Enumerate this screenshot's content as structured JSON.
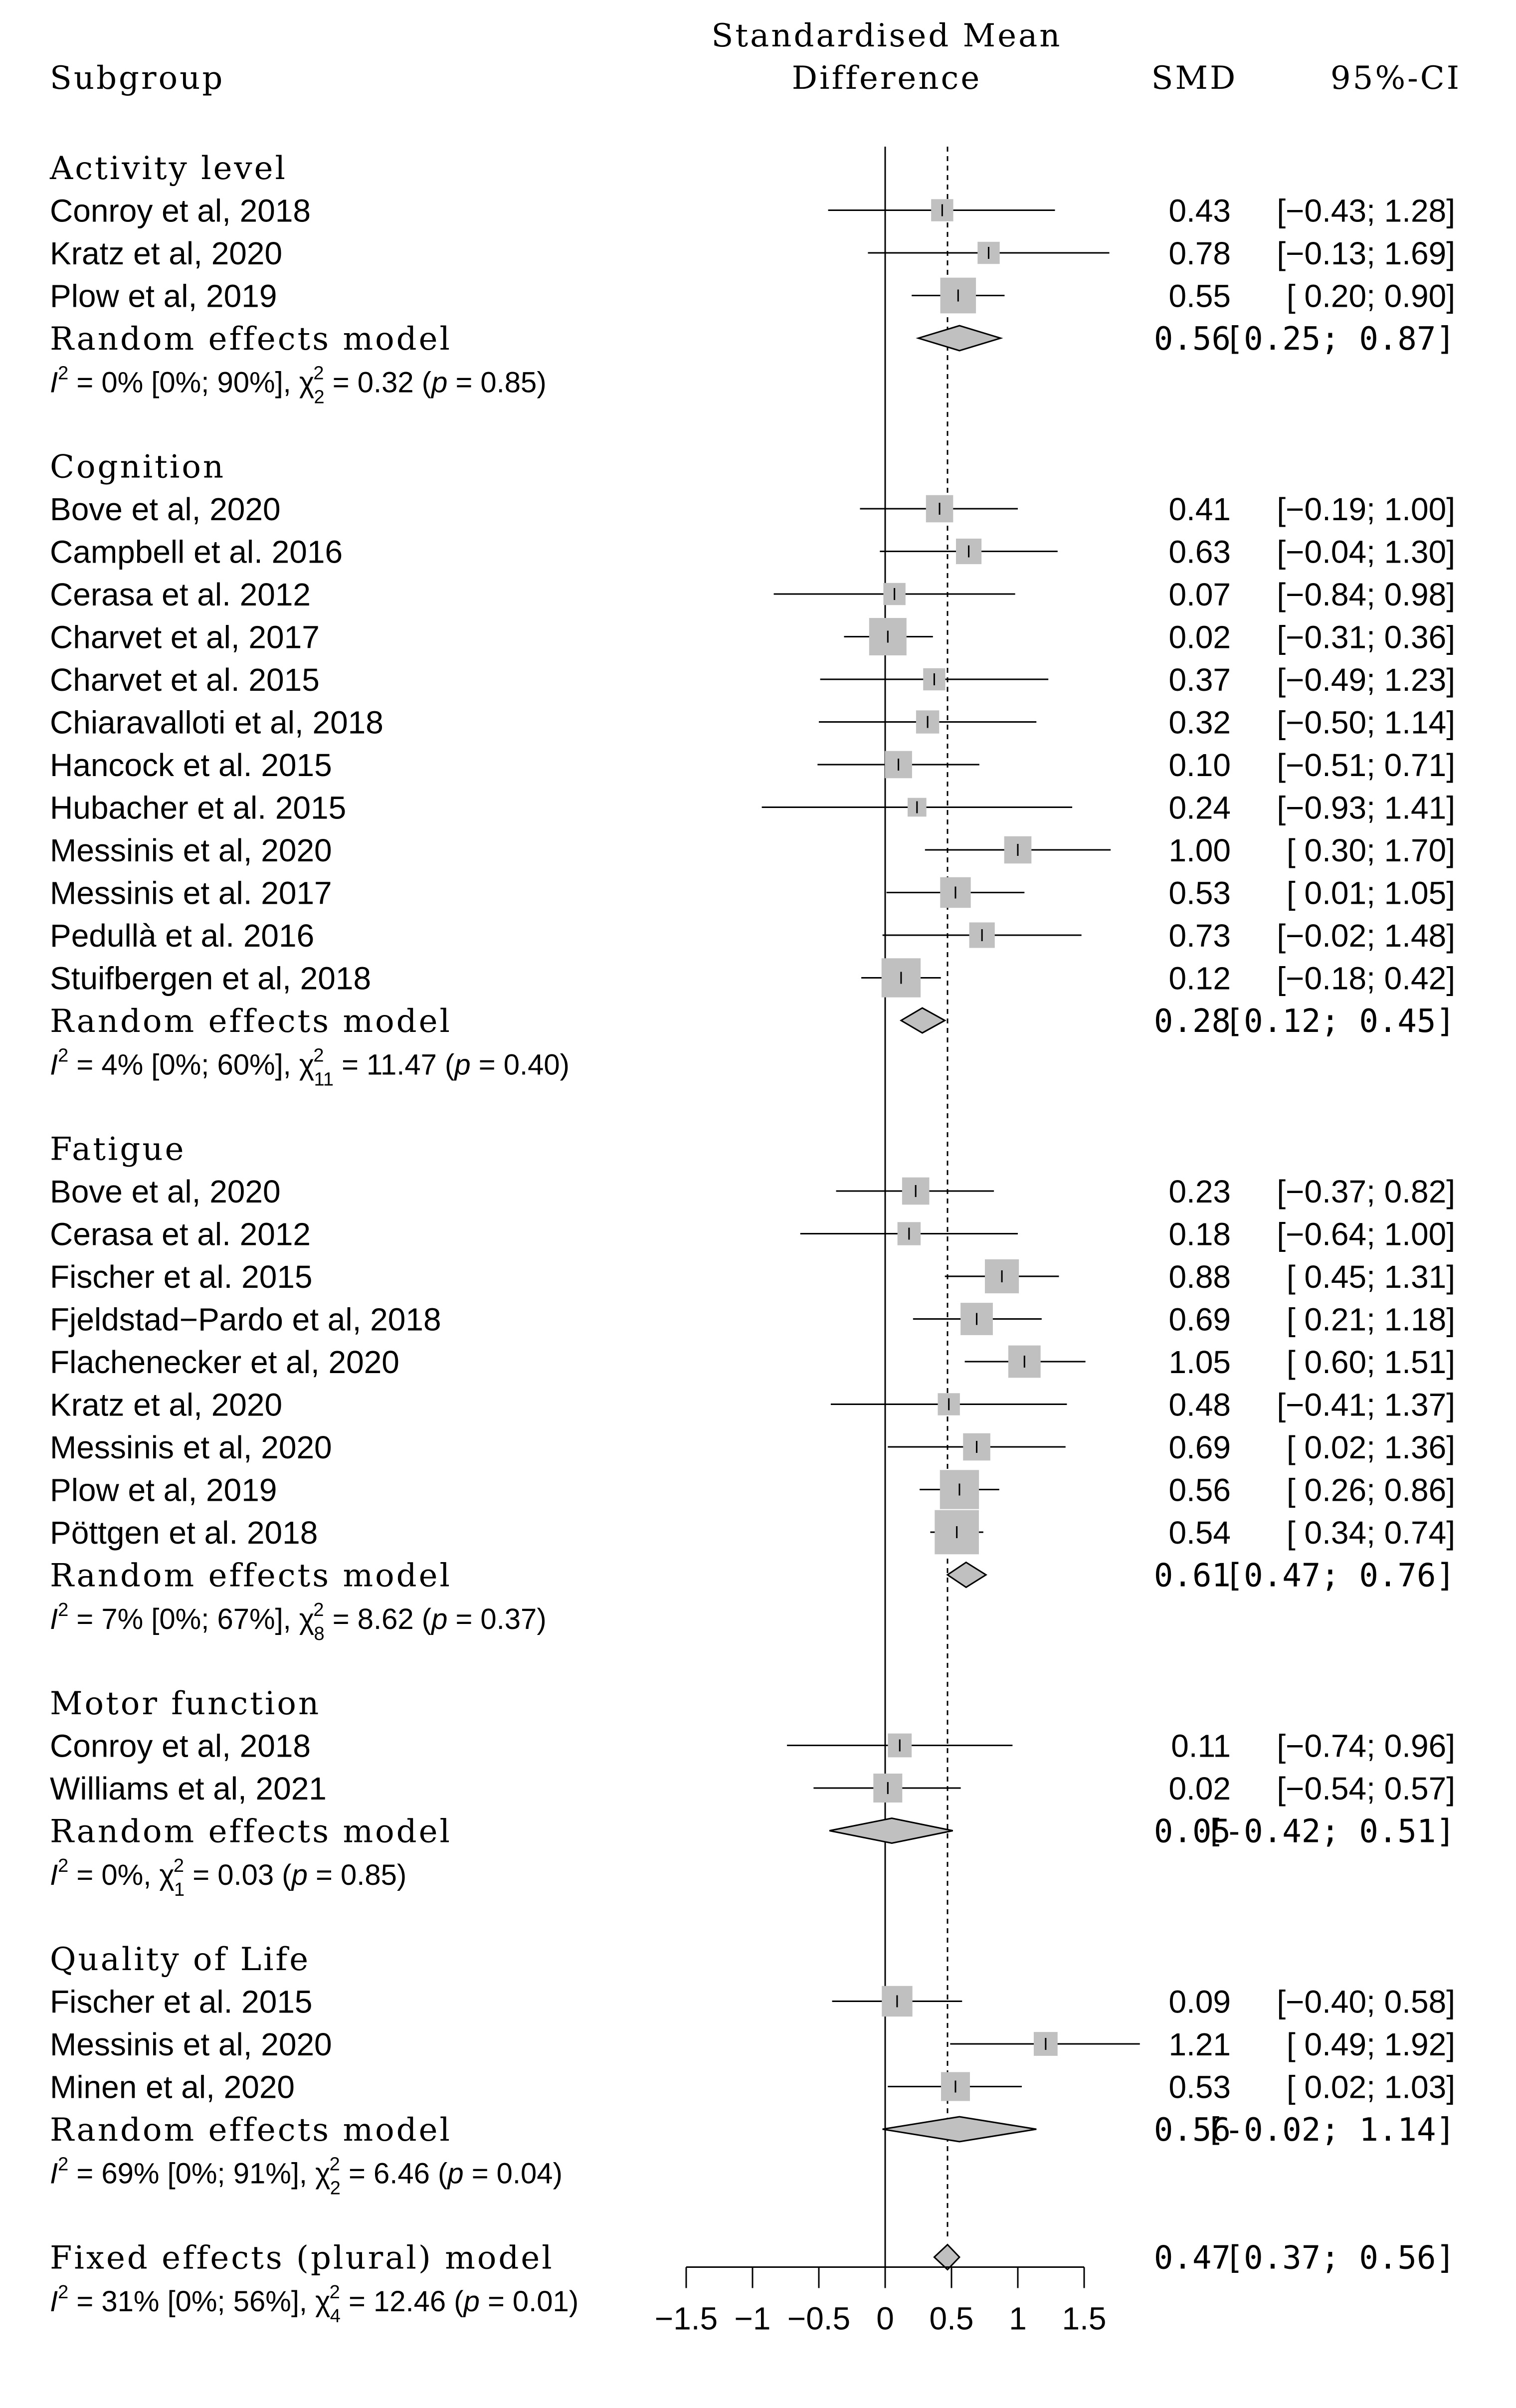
{
  "chart_data": {
    "type": "forest",
    "header": {
      "subgroup": "Subgroup",
      "effect_line1": "Standardised Mean",
      "effect_line2": "Difference",
      "smd": "SMD",
      "ci": "95%-CI"
    },
    "xlim": [
      -1.5,
      1.5
    ],
    "ticks": [
      {
        "v": -1.5,
        "label": "−1.5"
      },
      {
        "v": -1,
        "label": "−1"
      },
      {
        "v": -0.5,
        "label": "−0.5"
      },
      {
        "v": 0,
        "label": "0"
      },
      {
        "v": 0.5,
        "label": "0.5"
      },
      {
        "v": 1,
        "label": "1"
      },
      {
        "v": 1.5,
        "label": "1.5"
      }
    ],
    "reference_line": 0,
    "overall_line": 0.47,
    "groups": [
      {
        "name": "Activity level",
        "studies": [
          {
            "label": "Conroy et al, 2018",
            "smd": 0.43,
            "lo": -0.43,
            "hi": 1.28,
            "smd_text": "0.43",
            "ci_text": "[−0.43; 1.28]",
            "w": 0.3
          },
          {
            "label": "Kratz et al, 2020",
            "smd": 0.78,
            "lo": -0.13,
            "hi": 1.69,
            "smd_text": "0.78",
            "ci_text": "[−0.13; 1.69]",
            "w": 0.3
          },
          {
            "label": "Plow et al, 2019",
            "smd": 0.55,
            "lo": 0.2,
            "hi": 0.9,
            "smd_text": "0.55",
            "ci_text": "[ 0.20; 0.90]",
            "w": 0.7
          }
        ],
        "pooled": {
          "label": "Random effects model",
          "smd": 0.56,
          "lo": 0.25,
          "hi": 0.87,
          "smd_text": "0.56",
          "ci_text": "[0.25; 0.87]"
        },
        "het": {
          "i2": "0% [0%; 90%]",
          "chi_sub": "2",
          "chi": "0.32",
          "p": "0.85"
        }
      },
      {
        "name": "Cognition",
        "studies": [
          {
            "label": "Bove et al, 2020",
            "smd": 0.41,
            "lo": -0.19,
            "hi": 1.0,
            "smd_text": "0.41",
            "ci_text": "[−0.19; 1.00]",
            "w": 0.45
          },
          {
            "label": "Campbell et al. 2016",
            "smd": 0.63,
            "lo": -0.04,
            "hi": 1.3,
            "smd_text": "0.63",
            "ci_text": "[−0.04; 1.30]",
            "w": 0.4
          },
          {
            "label": "Cerasa et al. 2012",
            "smd": 0.07,
            "lo": -0.84,
            "hi": 0.98,
            "smd_text": "0.07",
            "ci_text": "[−0.84; 0.98]",
            "w": 0.3
          },
          {
            "label": "Charvet et al, 2017",
            "smd": 0.02,
            "lo": -0.31,
            "hi": 0.36,
            "smd_text": "0.02",
            "ci_text": "[−0.31; 0.36]",
            "w": 0.75
          },
          {
            "label": "Charvet et al. 2015",
            "smd": 0.37,
            "lo": -0.49,
            "hi": 1.23,
            "smd_text": "0.37",
            "ci_text": "[−0.49; 1.23]",
            "w": 0.3
          },
          {
            "label": "Chiaravalloti et al, 2018",
            "smd": 0.32,
            "lo": -0.5,
            "hi": 1.14,
            "smd_text": "0.32",
            "ci_text": "[−0.50; 1.14]",
            "w": 0.33
          },
          {
            "label": "Hancock et al. 2015",
            "smd": 0.1,
            "lo": -0.51,
            "hi": 0.71,
            "smd_text": "0.10",
            "ci_text": "[−0.51; 0.71]",
            "w": 0.45
          },
          {
            "label": "Hubacher et al. 2015",
            "smd": 0.24,
            "lo": -0.93,
            "hi": 1.41,
            "smd_text": "0.24",
            "ci_text": "[−0.93; 1.41]",
            "w": 0.2
          },
          {
            "label": "Messinis et al, 2020",
            "smd": 1.0,
            "lo": 0.3,
            "hi": 1.7,
            "smd_text": "1.00",
            "ci_text": "[ 0.30; 1.70]",
            "w": 0.45
          },
          {
            "label": "Messinis et al. 2017",
            "smd": 0.53,
            "lo": 0.01,
            "hi": 1.05,
            "smd_text": "0.53",
            "ci_text": "[ 0.01; 1.05]",
            "w": 0.55
          },
          {
            "label": "Pedullà et al. 2016",
            "smd": 0.73,
            "lo": -0.02,
            "hi": 1.48,
            "smd_text": "0.73",
            "ci_text": "[−0.02; 1.48]",
            "w": 0.4
          },
          {
            "label": "Stuifbergen et al, 2018",
            "smd": 0.12,
            "lo": -0.18,
            "hi": 0.42,
            "smd_text": "0.12",
            "ci_text": "[−0.18; 0.42]",
            "w": 0.8
          }
        ],
        "pooled": {
          "label": "Random effects model",
          "smd": 0.28,
          "lo": 0.12,
          "hi": 0.45,
          "smd_text": "0.28",
          "ci_text": "[0.12; 0.45]"
        },
        "het": {
          "i2": "4% [0%; 60%]",
          "chi_sub": "11",
          "chi": "11.47",
          "p": "0.40"
        }
      },
      {
        "name": "Fatigue",
        "studies": [
          {
            "label": "Bove et al, 2020",
            "smd": 0.23,
            "lo": -0.37,
            "hi": 0.82,
            "smd_text": "0.23",
            "ci_text": "[−0.37; 0.82]",
            "w": 0.45
          },
          {
            "label": "Cerasa et al. 2012",
            "smd": 0.18,
            "lo": -0.64,
            "hi": 1.0,
            "smd_text": "0.18",
            "ci_text": "[−0.64; 1.00]",
            "w": 0.33
          },
          {
            "label": "Fischer et al. 2015",
            "smd": 0.88,
            "lo": 0.45,
            "hi": 1.31,
            "smd_text": "0.88",
            "ci_text": "[ 0.45; 1.31]",
            "w": 0.65
          },
          {
            "label": "Fjeldstad−Pardo et al, 2018",
            "smd": 0.69,
            "lo": 0.21,
            "hi": 1.18,
            "smd_text": "0.69",
            "ci_text": "[ 0.21; 1.18]",
            "w": 0.6
          },
          {
            "label": "Flachenecker et al, 2020",
            "smd": 1.05,
            "lo": 0.6,
            "hi": 1.51,
            "smd_text": "1.05",
            "ci_text": "[ 0.60; 1.51]",
            "w": 0.6
          },
          {
            "label": "Kratz et al, 2020",
            "smd": 0.48,
            "lo": -0.41,
            "hi": 1.37,
            "smd_text": "0.48",
            "ci_text": "[−0.41; 1.37]",
            "w": 0.3
          },
          {
            "label": "Messinis et al, 2020",
            "smd": 0.69,
            "lo": 0.02,
            "hi": 1.36,
            "smd_text": "0.69",
            "ci_text": "[ 0.02; 1.36]",
            "w": 0.45
          },
          {
            "label": "Plow et al, 2019",
            "smd": 0.56,
            "lo": 0.26,
            "hi": 0.86,
            "smd_text": "0.56",
            "ci_text": "[ 0.26; 0.86]",
            "w": 0.8
          },
          {
            "label": "Pöttgen et al. 2018",
            "smd": 0.54,
            "lo": 0.34,
            "hi": 0.74,
            "smd_text": "0.54",
            "ci_text": "[ 0.34; 0.74]",
            "w": 0.95
          }
        ],
        "pooled": {
          "label": "Random effects model",
          "smd": 0.61,
          "lo": 0.47,
          "hi": 0.76,
          "smd_text": "0.61",
          "ci_text": "[0.47; 0.76]"
        },
        "het": {
          "i2": "7% [0%; 67%]",
          "chi_sub": "8",
          "chi": "8.62",
          "p": "0.37"
        }
      },
      {
        "name": "Motor function",
        "studies": [
          {
            "label": "Conroy et al, 2018",
            "smd": 0.11,
            "lo": -0.74,
            "hi": 0.96,
            "smd_text": "0.11",
            "ci_text": "[−0.74; 0.96]",
            "w": 0.35
          },
          {
            "label": "Williams et al, 2021",
            "smd": 0.02,
            "lo": -0.54,
            "hi": 0.57,
            "smd_text": "0.02",
            "ci_text": "[−0.54; 0.57]",
            "w": 0.5
          }
        ],
        "pooled": {
          "label": "Random effects model",
          "smd": 0.05,
          "lo": -0.42,
          "hi": 0.51,
          "smd_text": "0.05",
          "ci_text": "[-0.42; 0.51]"
        },
        "het": {
          "i2": "0%",
          "chi_sub": "1",
          "chi": "0.03",
          "p": "0.85"
        }
      },
      {
        "name": "Quality of Life",
        "studies": [
          {
            "label": "Fischer et al. 2015",
            "smd": 0.09,
            "lo": -0.4,
            "hi": 0.58,
            "smd_text": "0.09",
            "ci_text": "[−0.40; 0.58]",
            "w": 0.55
          },
          {
            "label": "Messinis et al, 2020",
            "smd": 1.21,
            "lo": 0.49,
            "hi": 1.92,
            "smd_text": "1.21",
            "ci_text": "[ 0.49; 1.92]",
            "w": 0.35
          },
          {
            "label": "Minen et al, 2020",
            "smd": 0.53,
            "lo": 0.02,
            "hi": 1.03,
            "smd_text": "0.53",
            "ci_text": "[ 0.02; 1.03]",
            "w": 0.5
          }
        ],
        "pooled": {
          "label": "Random effects model",
          "smd": 0.56,
          "lo": -0.02,
          "hi": 1.14,
          "smd_text": "0.56",
          "ci_text": "[-0.02; 1.14]"
        },
        "het": {
          "i2": "69% [0%; 91%]",
          "chi_sub": "2",
          "chi": "6.46",
          "p": "0.04"
        }
      }
    ],
    "overall": {
      "label": "Fixed effects (plural) model",
      "smd": 0.47,
      "lo": 0.37,
      "hi": 0.56,
      "smd_text": "0.47",
      "ci_text": "[0.37; 0.56]"
    },
    "overall_het": {
      "i2": "31% [0%; 56%]",
      "chi_sub": "4",
      "chi": "12.46",
      "p": "0.01"
    },
    "colors": {
      "box": "#c0c0c0",
      "diamond": "#c0c0c0",
      "line": "#000000"
    }
  }
}
